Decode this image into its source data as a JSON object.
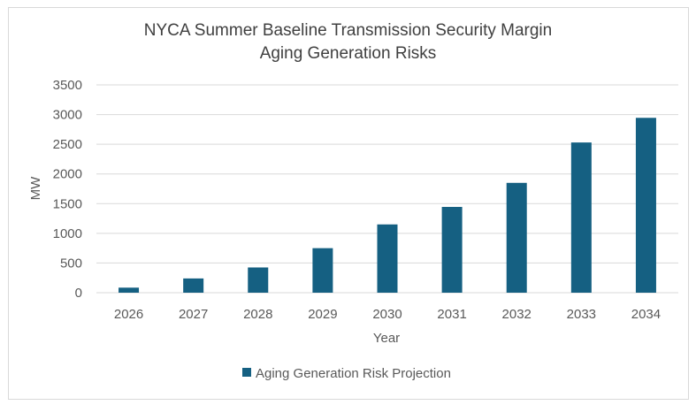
{
  "chart_data": {
    "type": "bar",
    "title": [
      "NYCA Summer Baseline Transmission Security Margin",
      "Aging Generation Risks"
    ],
    "xlabel": "Year",
    "ylabel": "MW",
    "categories": [
      "2026",
      "2027",
      "2028",
      "2029",
      "2030",
      "2031",
      "2032",
      "2033",
      "2034"
    ],
    "series": [
      {
        "name": "Aging Generation Risk Projection",
        "values": [
          85,
          240,
          425,
          750,
          1150,
          1445,
          1850,
          2530,
          2945
        ],
        "color": "#156082"
      }
    ],
    "ylim": [
      0,
      3500
    ],
    "yticks": [
      "0",
      "500",
      "1000",
      "1500",
      "2000",
      "2500",
      "3000",
      "3500"
    ],
    "grid": true,
    "legend": "bottom"
  }
}
